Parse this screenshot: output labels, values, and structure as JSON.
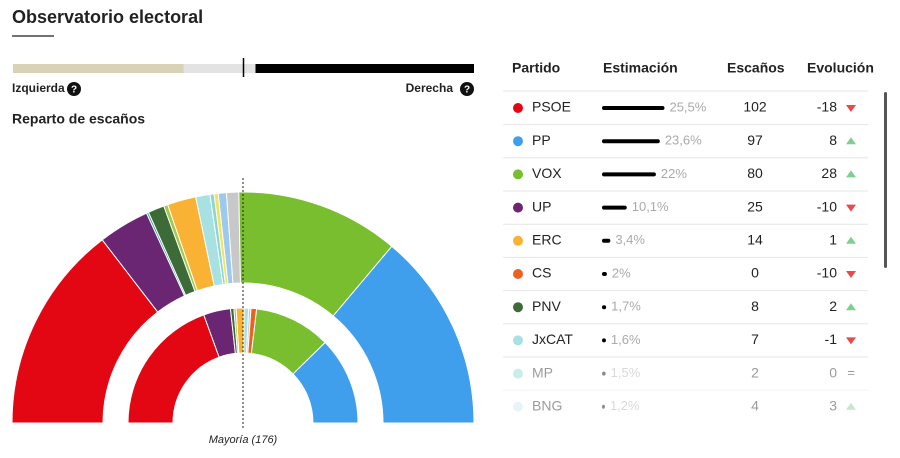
{
  "header": {
    "title": "Observatorio electoral"
  },
  "ideology": {
    "left_label": "Izquierda",
    "right_label": "Derecha",
    "left_share": 37,
    "marker": 50
  },
  "hemicycle": {
    "title": "Reparto de escaños",
    "majority_label": "Mayoría (176)",
    "outer": [
      {
        "color": "#e30613",
        "value": 102
      },
      {
        "color": "#6a2673",
        "value": 25
      },
      {
        "color": "#2fa3a0",
        "value": 1
      },
      {
        "color": "#3d6b38",
        "value": 8
      },
      {
        "color": "#a3c94a",
        "value": 2
      },
      {
        "color": "#f9b233",
        "value": 14
      },
      {
        "color": "#a7e1e1",
        "value": 7
      },
      {
        "color": "#89d8d0",
        "value": 2
      },
      {
        "color": "#f3e35a",
        "value": 2
      },
      {
        "color": "#9cc9ee",
        "value": 4
      },
      {
        "color": "#c8c8c8",
        "value": 6
      },
      {
        "color": "#78be2e",
        "value": 80
      },
      {
        "color": "#3f9fec",
        "value": 97
      }
    ],
    "inner": [
      {
        "color": "#e30613",
        "value": 123
      },
      {
        "color": "#6a2673",
        "value": 24
      },
      {
        "color": "#3d6b38",
        "value": 3
      },
      {
        "color": "#a3c94a",
        "value": 2
      },
      {
        "color": "#f9b233",
        "value": 7
      },
      {
        "color": "#a7e1e1",
        "value": 4
      },
      {
        "color": "#c8c8c8",
        "value": 2
      },
      {
        "color": "#ec6121",
        "value": 5
      },
      {
        "color": "#78be2e",
        "value": 68
      },
      {
        "color": "#3f9fec",
        "value": 78
      }
    ]
  },
  "table": {
    "columns": [
      "Partido",
      "Estimación",
      "Escaños",
      "Evolución"
    ],
    "rows": [
      {
        "party": "PSOE",
        "color": "#e30613",
        "estimate": 25.5,
        "estimate_label": "25,5%",
        "seats": 102,
        "change": -18
      },
      {
        "party": "PP",
        "color": "#3f9fec",
        "estimate": 23.6,
        "estimate_label": "23,6%",
        "seats": 97,
        "change": 8
      },
      {
        "party": "VOX",
        "color": "#78be2e",
        "estimate": 22,
        "estimate_label": "22%",
        "seats": 80,
        "change": 28
      },
      {
        "party": "UP",
        "color": "#6a2673",
        "estimate": 10.1,
        "estimate_label": "10,1%",
        "seats": 25,
        "change": -10
      },
      {
        "party": "ERC",
        "color": "#f9b233",
        "estimate": 3.4,
        "estimate_label": "3,4%",
        "seats": 14,
        "change": 1
      },
      {
        "party": "CS",
        "color": "#ec6121",
        "estimate": 2,
        "estimate_label": "2%",
        "seats": 0,
        "change": -10
      },
      {
        "party": "PNV",
        "color": "#3d6b38",
        "estimate": 1.7,
        "estimate_label": "1,7%",
        "seats": 8,
        "change": 2
      },
      {
        "party": "JxCAT",
        "color": "#a7e1e1",
        "estimate": 1.6,
        "estimate_label": "1,6%",
        "seats": 7,
        "change": -1
      },
      {
        "party": "MP",
        "color": "#89d8d0",
        "estimate": 1.5,
        "estimate_label": "1,5%",
        "seats": 2,
        "change": 0
      },
      {
        "party": "BNG",
        "color": "#cce8f8",
        "estimate": 1.2,
        "estimate_label": "1,2%",
        "seats": 4,
        "change": 3
      }
    ]
  }
}
